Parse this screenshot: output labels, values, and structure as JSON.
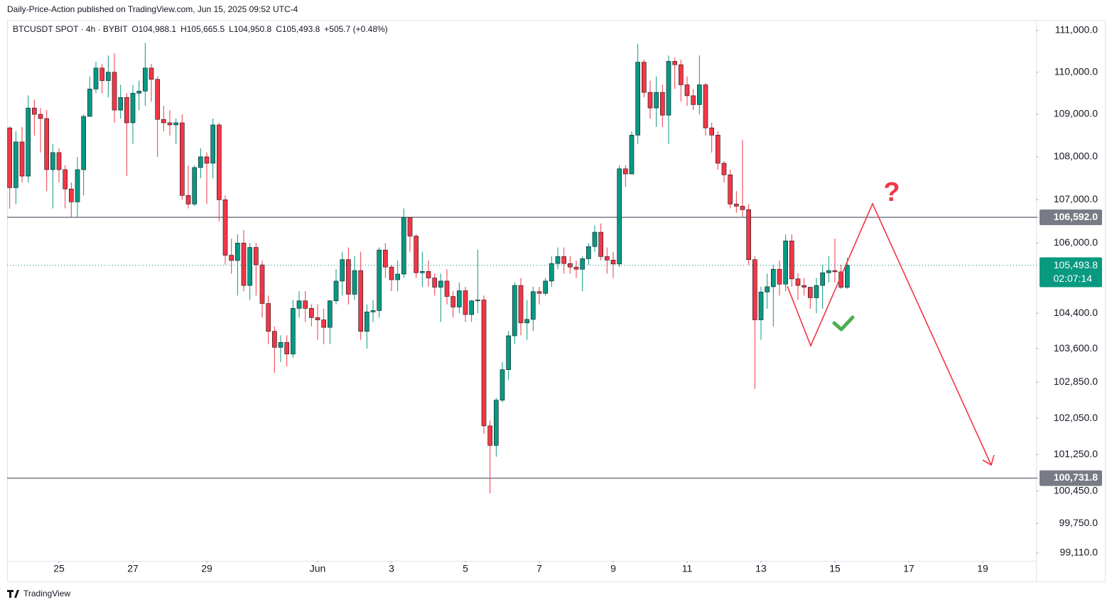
{
  "header": {
    "publisher": "Daily-Price-Action published on TradingView.com, Jun 15, 2025 09:52 UTC-4"
  },
  "footer": {
    "brand": "TradingView"
  },
  "chart_data": {
    "type": "candlestick",
    "symbol": "BTCUSDT SPOT · 4h · BYBIT",
    "ohlc_labels": [
      "O104,988.1",
      "H105,665.5",
      "L104,950.8",
      "C105,493.8"
    ],
    "change_label": "+505.7 (+0.48%)",
    "x_start": "2025-05-23T16:00",
    "interval_hours": 4,
    "xlim": [
      "2025-05-23T14:18",
      "2025-06-20T09:14"
    ],
    "xticks": [
      {
        "value": "2025-05-25",
        "label": "25"
      },
      {
        "value": "2025-05-27",
        "label": "27"
      },
      {
        "value": "2025-05-29",
        "label": "29"
      },
      {
        "value": "2025-06-01",
        "label": "Jun"
      },
      {
        "value": "2025-06-03",
        "label": "3"
      },
      {
        "value": "2025-06-05",
        "label": "5"
      },
      {
        "value": "2025-06-07",
        "label": "7"
      },
      {
        "value": "2025-06-09",
        "label": "9"
      },
      {
        "value": "2025-06-11",
        "label": "11"
      },
      {
        "value": "2025-06-13",
        "label": "13"
      },
      {
        "value": "2025-06-15",
        "label": "15"
      },
      {
        "value": "2025-06-17",
        "label": "17"
      },
      {
        "value": "2025-06-19",
        "label": "19"
      }
    ],
    "log_scale": true,
    "ylim": [
      98942,
      111221
    ],
    "yticks": [
      {
        "value": 111000,
        "label": "111,000.0"
      },
      {
        "value": 110000,
        "label": "110,000.0"
      },
      {
        "value": 109000,
        "label": "109,000.0"
      },
      {
        "value": 108000,
        "label": "108,000.0"
      },
      {
        "value": 107000,
        "label": "107,000.0"
      },
      {
        "value": 106000,
        "label": "106,000.0"
      },
      {
        "value": 104400,
        "label": "104,400.0"
      },
      {
        "value": 103600,
        "label": "103,600.0"
      },
      {
        "value": 102850,
        "label": "102,850.0"
      },
      {
        "value": 102050,
        "label": "102,050.0"
      },
      {
        "value": 101250,
        "label": "101,250.0"
      },
      {
        "value": 100450,
        "label": "100,450.0"
      },
      {
        "value": 99750,
        "label": "99,750.0"
      },
      {
        "value": 99110,
        "label": "99,110.0"
      }
    ],
    "grid": false,
    "up_color": "#089981",
    "down_color": "#f23645",
    "open": [
      108680,
      107280,
      108350,
      107550,
      109150,
      109000,
      108900,
      107700,
      108100,
      107700,
      107250,
      106950,
      107700,
      108950,
      109600,
      110100,
      109800,
      110000,
      109100,
      109400,
      108800,
      109500,
      109550,
      110100,
      109830,
      108880,
      108800,
      108750,
      108800,
      107100,
      106900,
      107750,
      108000,
      107850,
      108750,
      107000,
      105720,
      105600,
      106000,
      105030,
      105900,
      105500,
      104620,
      103990,
      103630,
      103740,
      103480,
      104510,
      104680,
      104510,
      104300,
      104250,
      104080,
      104680,
      105130,
      105620,
      104830,
      105370,
      103990,
      104430,
      104460,
      105840,
      105450,
      105160,
      105290,
      106590,
      106160,
      105320,
      105350,
      105200,
      104990,
      105130,
      104780,
      104540,
      104910,
      104370,
      104680,
      104700,
      101880,
      101450,
      102450,
      103130,
      103890,
      105030,
      104180,
      104260,
      104890,
      104850,
      105130,
      105530,
      105690,
      105530,
      105450,
      105400,
      105640,
      105920,
      106250,
      105690,
      105610,
      105520,
      107720,
      107600,
      108510,
      110240,
      109520,
      109150,
      109520,
      108980,
      110260,
      110180,
      109700,
      109440,
      109230,
      109700,
      108680,
      108510,
      107850,
      107580,
      106900,
      106850,
      106770,
      105620,
      104250,
      104880,
      105000,
      105400,
      105060,
      106050,
      105180,
      105030,
      104990,
      104750,
      105030,
      105320,
      105370,
      105340,
      104988.1
    ],
    "high": [
      108720,
      108600,
      108700,
      109450,
      109350,
      109150,
      109100,
      108300,
      108200,
      107800,
      107400,
      108000,
      109000,
      109900,
      110250,
      110200,
      110400,
      110450,
      109700,
      109500,
      109700,
      109800,
      110700,
      110200,
      109900,
      109200,
      109100,
      108900,
      109000,
      107800,
      107800,
      108200,
      108100,
      108900,
      108800,
      107100,
      106100,
      106200,
      106300,
      106000,
      106000,
      105600,
      104800,
      104100,
      103900,
      103900,
      104700,
      104900,
      104900,
      104600,
      104600,
      104500,
      104700,
      105400,
      105800,
      105900,
      105700,
      105800,
      104600,
      104700,
      105900,
      106000,
      105500,
      105600,
      106800,
      106600,
      106200,
      105800,
      105600,
      105300,
      105300,
      105400,
      104900,
      105100,
      105000,
      104700,
      105850,
      104800,
      102000,
      102500,
      103300,
      104000,
      105100,
      105200,
      104700,
      105000,
      105000,
      105200,
      105700,
      105900,
      105900,
      105700,
      105600,
      105700,
      106000,
      106400,
      106450,
      105900,
      105800,
      107800,
      107800,
      108600,
      110680,
      110300,
      109800,
      109900,
      109700,
      110400,
      110350,
      110300,
      109900,
      109600,
      110400,
      109750,
      108800,
      108600,
      107900,
      107700,
      107200,
      108400,
      106900,
      105700,
      105000,
      105300,
      105500,
      105600,
      106200,
      106200,
      105300,
      105200,
      105000,
      105200,
      105500,
      105700,
      106100,
      105500,
      105665.5
    ],
    "low": [
      106790,
      106900,
      107400,
      107400,
      108500,
      108100,
      107200,
      106800,
      107400,
      106800,
      106600,
      106600,
      107100,
      108950,
      109500,
      109500,
      109400,
      108800,
      108900,
      107550,
      108300,
      109100,
      109200,
      109300,
      108000,
      108600,
      108500,
      108300,
      107000,
      106800,
      106850,
      107500,
      106900,
      107500,
      106500,
      105500,
      105300,
      104800,
      104900,
      104700,
      104800,
      104300,
      103700,
      103060,
      103300,
      103200,
      103400,
      104300,
      104200,
      104100,
      103800,
      103700,
      103700,
      104600,
      104800,
      104600,
      104700,
      103800,
      103600,
      104200,
      104300,
      105200,
      104900,
      104900,
      105200,
      105800,
      105200,
      105000,
      105000,
      104800,
      104200,
      104600,
      104300,
      104400,
      104200,
      104200,
      104400,
      101700,
      100400,
      101200,
      102400,
      102900,
      103700,
      103900,
      103800,
      104000,
      104600,
      104800,
      105000,
      105400,
      105300,
      105300,
      105200,
      104900,
      105500,
      105800,
      105600,
      105300,
      105200,
      105450,
      107300,
      107600,
      108300,
      109400,
      108900,
      108700,
      108700,
      108300,
      109600,
      109300,
      109200,
      109100,
      109000,
      108500,
      108100,
      107700,
      107400,
      106800,
      106700,
      106600,
      105500,
      102700,
      103800,
      104500,
      104100,
      104800,
      104900,
      105000,
      104700,
      104800,
      104500,
      104400,
      104500,
      105100,
      105100,
      104950,
      104950.8
    ],
    "close": [
      107280,
      108350,
      107550,
      109150,
      109000,
      108900,
      107700,
      108100,
      107700,
      107250,
      106950,
      107700,
      108950,
      109600,
      110100,
      109800,
      110000,
      109100,
      109400,
      108800,
      109500,
      109550,
      110100,
      109830,
      108880,
      108800,
      108750,
      108800,
      107100,
      106900,
      107750,
      108000,
      107850,
      108750,
      107000,
      105720,
      105600,
      106000,
      105030,
      105900,
      105500,
      104620,
      103990,
      103630,
      103740,
      103480,
      104510,
      104680,
      104510,
      104300,
      104250,
      104080,
      104680,
      105130,
      105620,
      104830,
      105370,
      103990,
      104430,
      104460,
      105840,
      105450,
      105160,
      105290,
      106590,
      106160,
      105320,
      105350,
      105200,
      104990,
      105130,
      104780,
      104540,
      104910,
      104370,
      104680,
      104700,
      101880,
      101450,
      102450,
      103130,
      103890,
      105030,
      104180,
      104260,
      104890,
      104850,
      105130,
      105530,
      105690,
      105530,
      105450,
      105400,
      105640,
      105920,
      106250,
      105690,
      105610,
      105520,
      107720,
      107600,
      108510,
      110240,
      109520,
      109150,
      109520,
      108980,
      110260,
      110180,
      109700,
      109440,
      109230,
      109700,
      108680,
      108510,
      107850,
      107580,
      106900,
      106850,
      106770,
      105620,
      104250,
      104880,
      105000,
      105400,
      105060,
      106050,
      105180,
      105030,
      104990,
      104750,
      105030,
      105320,
      105370,
      105340,
      104988.1,
      105493.8
    ],
    "price_lines": [
      {
        "value": 106592.0,
        "label": "106,592.0",
        "color": "#787b86"
      },
      {
        "value": 100731.8,
        "label": "100,731.8",
        "color": "#787b86"
      }
    ],
    "last_price": {
      "value": 105493.8,
      "label": "105,493.8",
      "countdown": "02:07:14",
      "color": "#089981"
    },
    "annotations": {
      "question": "?"
    }
  }
}
